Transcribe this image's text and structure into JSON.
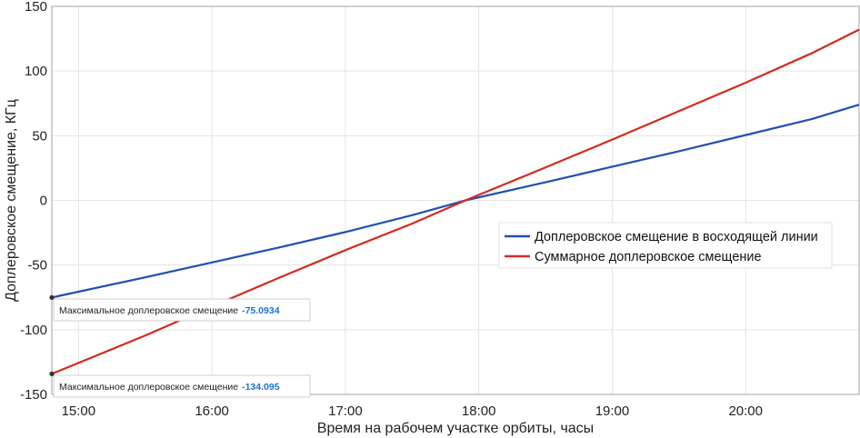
{
  "chart_data": {
    "type": "line",
    "xlabel": "Время на рабочем участке орбиты, часы",
    "ylabel": "Доплеровское смещение, КГц",
    "xlim": [
      14.8,
      20.85
    ],
    "ylim": [
      -150,
      150
    ],
    "x_ticks": [
      15,
      16,
      17,
      18,
      19,
      20
    ],
    "x_tick_labels": [
      "15:00",
      "16:00",
      "17:00",
      "18:00",
      "19:00",
      "20:00"
    ],
    "y_ticks": [
      -150,
      -100,
      -50,
      0,
      50,
      100,
      150
    ],
    "y_tick_labels": [
      "-150",
      "-100",
      "-50",
      "0",
      "50",
      "100",
      "150"
    ],
    "grid": true,
    "legend_position": "right-center",
    "series": [
      {
        "name": "Доплеровское смещение в восходящей линии",
        "color": "#1f4fb5",
        "x": [
          14.8,
          15.5,
          16.0,
          16.5,
          17.0,
          17.5,
          17.9,
          18.5,
          19.0,
          19.5,
          20.0,
          20.5,
          20.85
        ],
        "y": [
          -75.09,
          -59.5,
          -48.0,
          -36.5,
          -24.5,
          -11.5,
          0,
          14.0,
          26.0,
          38.0,
          50.5,
          63.0,
          74.0
        ]
      },
      {
        "name": "Суммарное доплеровское смещение",
        "color": "#d42a1e",
        "x": [
          14.8,
          15.5,
          16.0,
          16.5,
          17.0,
          17.5,
          17.9,
          18.5,
          19.0,
          19.5,
          20.0,
          20.5,
          20.85
        ],
        "y": [
          -134.095,
          -104.5,
          -82.0,
          -60.0,
          -38.5,
          -18.0,
          0,
          25.5,
          47.0,
          69.0,
          91.0,
          114.0,
          132.0
        ]
      }
    ],
    "annotations": [
      {
        "label": "Максимальное доплеровское смещение",
        "value": "-75.0934",
        "x": 14.8,
        "y": -75.0934,
        "series": 0
      },
      {
        "label": "Максимальное доплеровское смещение",
        "value": "-134.095",
        "x": 14.8,
        "y": -134.095,
        "series": 1
      }
    ]
  }
}
